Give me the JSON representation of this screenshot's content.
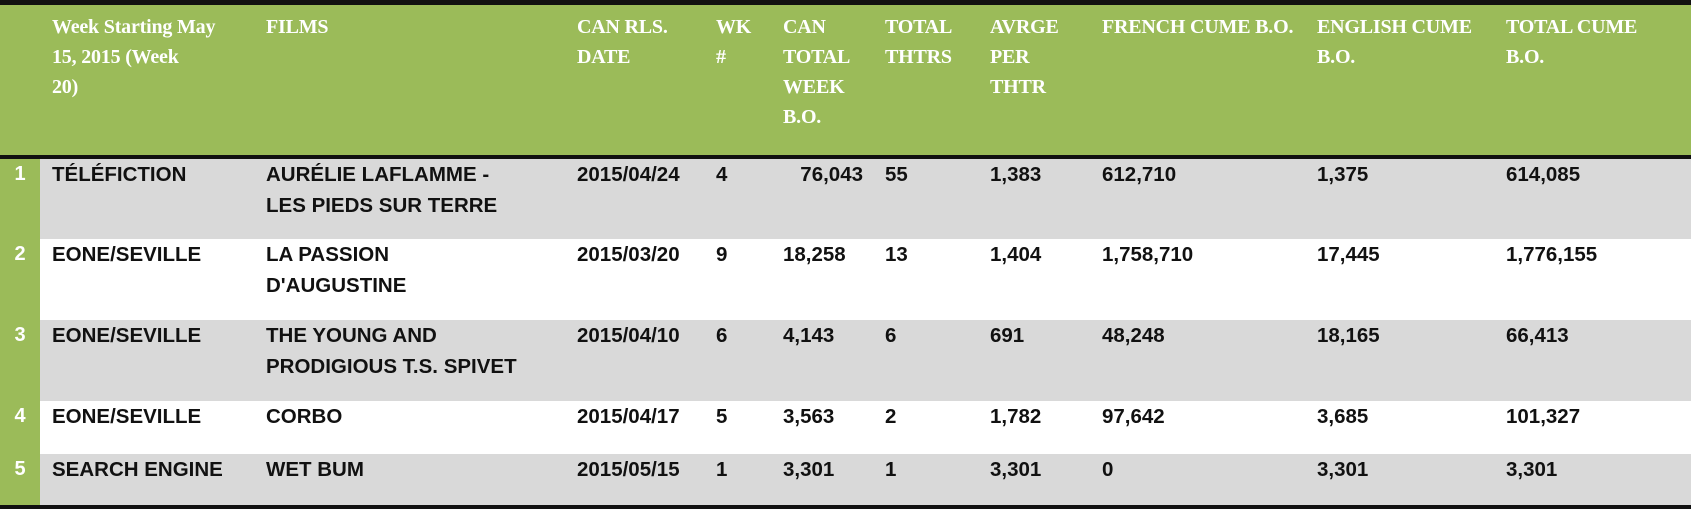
{
  "colors": {
    "header_bg": "#9bbb59",
    "row_shade": "#d9d9d9",
    "rule": "#111111"
  },
  "header": {
    "week": "Week Starting May\n15, 2015 (Week\n20)",
    "films": "FILMS",
    "can_rls_date": "CAN RLS.\nDATE",
    "wk": "WK\n#",
    "can_total_week_bo": "CAN\nTOTAL\nWEEK\nB.O.",
    "total_thtrs": "TOTAL\nTHTRS",
    "avrge_per_thtr": "AVRGE\nPER\nTHTR",
    "french_cume_bo": "FRENCH CUME B.O.",
    "english_cume_bo": "ENGLISH CUME\nB.O.",
    "total_cume_bo": "TOTAL CUME\nB.O."
  },
  "rows": [
    {
      "rank": "1",
      "distributor": "TÉLÉFICTION",
      "film": "AURÉLIE LAFLAMME -\nLES PIEDS SUR TERRE",
      "date": "2015/04/24",
      "wk": "4",
      "week_bo": "76,043",
      "thtrs": "55",
      "avg": "1,383",
      "french": "612,710",
      "english": "1,375",
      "total": "614,085"
    },
    {
      "rank": "2",
      "distributor": "EONE/SEVILLE",
      "film": "LA PASSION\nD'AUGUSTINE",
      "date": "2015/03/20",
      "wk": "9",
      "week_bo": "18,258",
      "thtrs": "13",
      "avg": "1,404",
      "french": "1,758,710",
      "english": "17,445",
      "total": "1,776,155"
    },
    {
      "rank": "3",
      "distributor": "EONE/SEVILLE",
      "film": "THE YOUNG AND\nPRODIGIOUS T.S. SPIVET",
      "date": "2015/04/10",
      "wk": "6",
      "week_bo": "4,143",
      "thtrs": "6",
      "avg": "691",
      "french": "48,248",
      "english": "18,165",
      "total": "66,413"
    },
    {
      "rank": "4",
      "distributor": "EONE/SEVILLE",
      "film": "CORBO",
      "date": "2015/04/17",
      "wk": "5",
      "week_bo": "3,563",
      "thtrs": "2",
      "avg": "1,782",
      "french": "97,642",
      "english": "3,685",
      "total": "101,327"
    },
    {
      "rank": "5",
      "distributor": "SEARCH ENGINE",
      "film": "WET BUM",
      "date": "2015/05/15",
      "wk": "1",
      "week_bo": "3,301",
      "thtrs": "1",
      "avg": "3,301",
      "french": "0",
      "english": "3,301",
      "total": "3,301"
    }
  ]
}
